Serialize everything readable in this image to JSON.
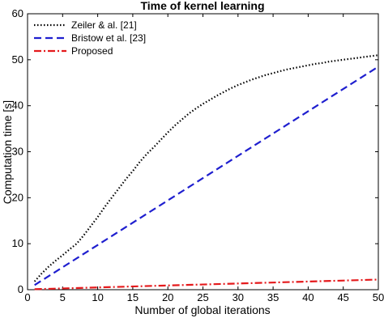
{
  "chart_data": {
    "type": "line",
    "title": "Time of kernel learning",
    "xlabel": "Number of global iterations",
    "ylabel": "Computation time [s]",
    "xlim": [
      0,
      50
    ],
    "ylim": [
      0,
      60
    ],
    "xticks": [
      0,
      5,
      10,
      15,
      20,
      25,
      30,
      35,
      40,
      45,
      50
    ],
    "yticks": [
      0,
      10,
      20,
      30,
      40,
      50,
      60
    ],
    "grid": false,
    "legend_position": "top-left",
    "series": [
      {
        "name": "Zeiler & al. [21]",
        "color": "#000000",
        "style": "dotted",
        "x": [
          1,
          2,
          3,
          4,
          5,
          6,
          7,
          8,
          9,
          10,
          11,
          12,
          13,
          14,
          15,
          16,
          17,
          18,
          19,
          20,
          21,
          22,
          23,
          24,
          25,
          26,
          27,
          28,
          29,
          30,
          31,
          32,
          33,
          34,
          35,
          36,
          37,
          38,
          39,
          40,
          41,
          42,
          43,
          44,
          45,
          46,
          47,
          48,
          49,
          50
        ],
        "y": [
          1.8,
          3.5,
          5.0,
          6.3,
          7.5,
          8.8,
          10.0,
          11.8,
          13.8,
          15.8,
          18.0,
          20.0,
          22.0,
          24.0,
          25.8,
          27.8,
          29.5,
          31.0,
          32.6,
          34.2,
          35.7,
          37.0,
          38.3,
          39.4,
          40.4,
          41.3,
          42.2,
          43.0,
          43.8,
          44.5,
          45.1,
          45.7,
          46.2,
          46.7,
          47.1,
          47.5,
          47.9,
          48.2,
          48.5,
          48.8,
          49.1,
          49.3,
          49.6,
          49.8,
          50.0,
          50.2,
          50.4,
          50.6,
          50.8,
          51.0
        ]
      },
      {
        "name": "Bristow et al. [23]",
        "color": "#1f1fcf",
        "style": "dashed",
        "x": [
          1,
          50
        ],
        "y": [
          1.0,
          48.5
        ]
      },
      {
        "name": "Proposed",
        "color": "#e41a1c",
        "style": "dashdot",
        "x": [
          1,
          50
        ],
        "y": [
          0.1,
          2.2
        ]
      }
    ]
  }
}
